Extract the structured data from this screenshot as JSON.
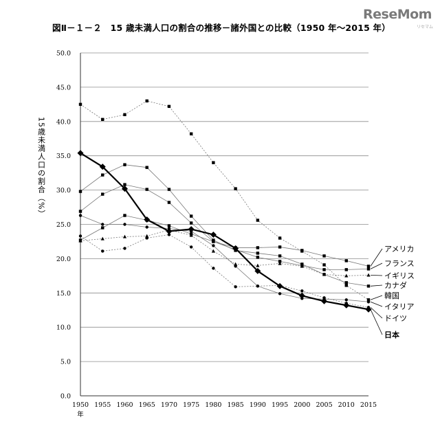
{
  "header": {
    "title": "図Ⅱ－１－２　15 歳未満人口の割合の推移－諸外国との比較（1950 年～2015 年）",
    "watermark": "ReseMom",
    "watermark_sub": "リセマム"
  },
  "chart_data": {
    "type": "line",
    "title": "図Ⅱ－１－２　15 歳未満人口の割合の推移－諸外国との比較（1950 年～2015 年）",
    "ylabel": "15歳未満人口の割合（%）",
    "xlabel": "",
    "x_unit": "年",
    "ylim": [
      0,
      50
    ],
    "yticks": [
      "0.0",
      "5.0",
      "10.0",
      "15.0",
      "20.0",
      "25.0",
      "30.0",
      "35.0",
      "40.0",
      "45.0",
      "50.0"
    ],
    "x": [
      "1950",
      "1955",
      "1960",
      "1965",
      "1970",
      "1975",
      "1980",
      "1985",
      "1990",
      "1995",
      "2000",
      "2005",
      "2010",
      "2015"
    ],
    "grid": true,
    "legend": "labels at right end of lines",
    "series": [
      {
        "name": "アメリカ",
        "marker": "square",
        "values": [
          26.9,
          29.4,
          30.8,
          30.1,
          28.2,
          25.2,
          22.5,
          21.6,
          21.6,
          21.7,
          21.2,
          20.4,
          19.7,
          18.9
        ]
      },
      {
        "name": "フランス",
        "marker": "square",
        "values": [
          22.7,
          24.5,
          26.3,
          25.6,
          24.8,
          23.6,
          22.5,
          21.3,
          20.2,
          19.6,
          19.0,
          18.4,
          18.4,
          18.5
        ]
      },
      {
        "name": "イギリス",
        "marker": "triangle",
        "values": [
          22.6,
          22.9,
          23.2,
          23.3,
          24.2,
          23.4,
          21.1,
          19.2,
          19.0,
          19.3,
          18.9,
          17.7,
          17.5,
          17.6
        ]
      },
      {
        "name": "カナダ",
        "marker": "square",
        "values": [
          29.8,
          32.2,
          33.7,
          33.3,
          30.1,
          26.2,
          22.7,
          21.2,
          20.8,
          20.4,
          19.2,
          17.7,
          16.5,
          16.0
        ]
      },
      {
        "name": "韓国",
        "marker": "square",
        "values": [
          42.5,
          40.3,
          41.0,
          43.0,
          42.2,
          38.2,
          34.0,
          30.2,
          25.6,
          23.0,
          21.1,
          19.1,
          16.1,
          14.0
        ]
      },
      {
        "name": "イタリア",
        "marker": "circle",
        "values": [
          26.3,
          25.0,
          25.0,
          24.6,
          24.4,
          24.0,
          21.9,
          18.9,
          16.0,
          14.9,
          14.2,
          14.1,
          14.0,
          13.7
        ]
      },
      {
        "name": "ドイツ",
        "marker": "circle",
        "values": [
          23.3,
          21.1,
          21.5,
          23.0,
          23.5,
          21.7,
          18.6,
          15.9,
          16.0,
          16.1,
          15.3,
          14.3,
          13.5,
          12.9
        ]
      },
      {
        "name": "日本",
        "marker": "diamond",
        "values": [
          35.4,
          33.4,
          30.2,
          25.7,
          24.0,
          24.3,
          23.5,
          21.5,
          18.2,
          16.0,
          14.6,
          13.8,
          13.2,
          12.6
        ]
      }
    ]
  }
}
